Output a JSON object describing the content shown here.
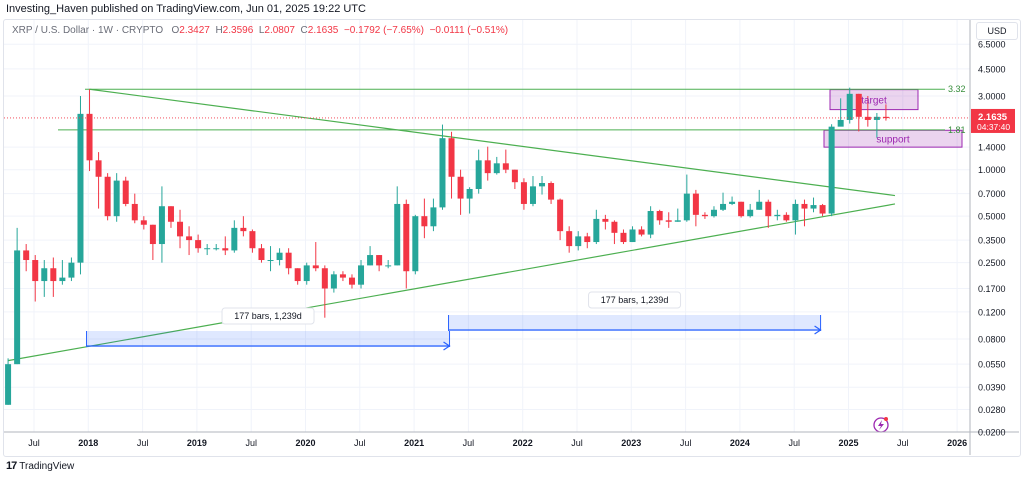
{
  "publish_line": "Investing_Haven published on TradingView.com, Jun 01, 2025 19:22 UTC",
  "legend": {
    "symbol": "XRP / U.S. Dollar · 1W · CRYPTO",
    "open_label": "O",
    "open": "2.3427",
    "high_label": "H",
    "high": "2.3596",
    "low_label": "L",
    "low": "2.0807",
    "close_label": "C",
    "close": "2.1635",
    "change": "−0.1792 (−7.65%)",
    "change2": "−0.0111 (−0.51%)"
  },
  "currency": "USD",
  "branding": "TradingView",
  "colors": {
    "up": "#26a69a",
    "down": "#f23645",
    "lines": "#4caf50",
    "zone": "#9c27b0",
    "range": "#2962ff"
  },
  "chart_data": {
    "type": "candlestick",
    "scale": "log",
    "ylim": [
      0.02,
      6.5
    ],
    "y_ticks": [
      "6.5000",
      "4.5000",
      "3.0000",
      "1.4000",
      "1.0000",
      "0.7000",
      "0.5000",
      "0.3500",
      "0.2500",
      "0.1700",
      "0.1200",
      "0.0800",
      "0.0550",
      "0.0390",
      "0.0280",
      "0.0200"
    ],
    "x_ticks": [
      "Jul",
      "2018",
      "Jul",
      "2019",
      "Jul",
      "2020",
      "Jul",
      "2021",
      "Jul",
      "2022",
      "Jul",
      "2023",
      "Jul",
      "2024",
      "Jul",
      "2025",
      "Jul",
      "2026"
    ],
    "first_open": 0.03,
    "start": "2017-04",
    "candles_hlc": [
      [
        0.06,
        0.03,
        0.055
      ],
      [
        0.42,
        0.055,
        0.3
      ],
      [
        0.33,
        0.22,
        0.26
      ],
      [
        0.28,
        0.14,
        0.19
      ],
      [
        0.26,
        0.15,
        0.23
      ],
      [
        0.27,
        0.15,
        0.19
      ],
      [
        0.26,
        0.18,
        0.2
      ],
      [
        0.27,
        0.19,
        0.25
      ],
      [
        3.0,
        0.21,
        2.3
      ],
      [
        3.32,
        0.98,
        1.15
      ],
      [
        1.3,
        0.56,
        0.9
      ],
      [
        0.95,
        0.47,
        0.5
      ],
      [
        0.95,
        0.46,
        0.85
      ],
      [
        0.9,
        0.58,
        0.6
      ],
      [
        0.7,
        0.45,
        0.47
      ],
      [
        0.5,
        0.41,
        0.44
      ],
      [
        0.44,
        0.26,
        0.33
      ],
      [
        0.78,
        0.25,
        0.58
      ],
      [
        0.58,
        0.42,
        0.46
      ],
      [
        0.55,
        0.31,
        0.37
      ],
      [
        0.43,
        0.28,
        0.35
      ],
      [
        0.38,
        0.29,
        0.31
      ],
      [
        0.33,
        0.28,
        0.31
      ],
      [
        0.33,
        0.3,
        0.31
      ],
      [
        0.37,
        0.28,
        0.3
      ],
      [
        0.47,
        0.29,
        0.42
      ],
      [
        0.5,
        0.37,
        0.4
      ],
      [
        0.41,
        0.29,
        0.31
      ],
      [
        0.33,
        0.25,
        0.26
      ],
      [
        0.32,
        0.22,
        0.26
      ],
      [
        0.31,
        0.24,
        0.29
      ],
      [
        0.31,
        0.21,
        0.23
      ],
      [
        0.23,
        0.18,
        0.19
      ],
      [
        0.25,
        0.18,
        0.24
      ],
      [
        0.34,
        0.22,
        0.23
      ],
      [
        0.24,
        0.11,
        0.17
      ],
      [
        0.22,
        0.16,
        0.21
      ],
      [
        0.22,
        0.19,
        0.2
      ],
      [
        0.21,
        0.17,
        0.18
      ],
      [
        0.26,
        0.17,
        0.24
      ],
      [
        0.32,
        0.24,
        0.28
      ],
      [
        0.28,
        0.22,
        0.24
      ],
      [
        0.26,
        0.23,
        0.24
      ],
      [
        0.78,
        0.24,
        0.6
      ],
      [
        0.64,
        0.17,
        0.22
      ],
      [
        0.51,
        0.21,
        0.5
      ],
      [
        0.65,
        0.36,
        0.43
      ],
      [
        0.65,
        0.4,
        0.57
      ],
      [
        1.96,
        0.55,
        1.6
      ],
      [
        1.76,
        0.65,
        0.9
      ],
      [
        1.0,
        0.51,
        0.65
      ],
      [
        0.77,
        0.52,
        0.75
      ],
      [
        1.35,
        0.7,
        1.15
      ],
      [
        1.41,
        0.85,
        0.95
      ],
      [
        1.21,
        0.93,
        1.1
      ],
      [
        1.35,
        0.95,
        1.0
      ],
      [
        1.0,
        0.75,
        0.83
      ],
      [
        0.88,
        0.55,
        0.6
      ],
      [
        0.91,
        0.58,
        0.78
      ],
      [
        0.91,
        0.69,
        0.82
      ],
      [
        0.84,
        0.6,
        0.64
      ],
      [
        0.65,
        0.35,
        0.4
      ],
      [
        0.43,
        0.29,
        0.32
      ],
      [
        0.4,
        0.3,
        0.37
      ],
      [
        0.39,
        0.31,
        0.34
      ],
      [
        0.55,
        0.33,
        0.48
      ],
      [
        0.51,
        0.41,
        0.46
      ],
      [
        0.47,
        0.33,
        0.39
      ],
      [
        0.41,
        0.33,
        0.34
      ],
      [
        0.43,
        0.34,
        0.41
      ],
      [
        0.43,
        0.37,
        0.38
      ],
      [
        0.58,
        0.36,
        0.54
      ],
      [
        0.55,
        0.44,
        0.47
      ],
      [
        0.53,
        0.42,
        0.46
      ],
      [
        0.56,
        0.46,
        0.47
      ],
      [
        0.93,
        0.46,
        0.7
      ],
      [
        0.74,
        0.43,
        0.51
      ],
      [
        0.53,
        0.48,
        0.5
      ],
      [
        0.58,
        0.49,
        0.55
      ],
      [
        0.71,
        0.54,
        0.6
      ],
      [
        0.67,
        0.59,
        0.62
      ],
      [
        0.62,
        0.49,
        0.5
      ],
      [
        0.6,
        0.49,
        0.55
      ],
      [
        0.74,
        0.55,
        0.62
      ],
      [
        0.64,
        0.42,
        0.5
      ],
      [
        0.55,
        0.47,
        0.51
      ],
      [
        0.53,
        0.46,
        0.47
      ],
      [
        0.64,
        0.38,
        0.6
      ],
      [
        0.64,
        0.43,
        0.56
      ],
      [
        0.66,
        0.53,
        0.59
      ],
      [
        0.6,
        0.5,
        0.52
      ],
      [
        1.97,
        0.5,
        1.9
      ],
      [
        2.9,
        1.95,
        2.1
      ],
      [
        3.4,
        1.99,
        3.1
      ],
      [
        3.1,
        1.77,
        2.2
      ],
      [
        3.0,
        1.9,
        2.1
      ],
      [
        2.33,
        1.61,
        2.2
      ],
      [
        2.65,
        2.08,
        2.16
      ]
    ],
    "last_price": "2.1635",
    "countdown": "04:37:40",
    "levels": [
      {
        "value": 3.32,
        "label": "3.32"
      },
      {
        "value": 1.81,
        "label": "1.81"
      }
    ],
    "zones": [
      {
        "label": "target",
        "low": 2.45,
        "high": 3.3
      },
      {
        "label": "support",
        "low": 1.4,
        "high": 1.8
      }
    ],
    "trendlines": [
      {
        "from": [
          "2018-01",
          3.32
        ],
        "to": [
          "2025-06",
          0.68
        ]
      },
      {
        "from": [
          "2017-04",
          0.058
        ],
        "to": [
          "2025-06",
          0.6
        ]
      }
    ],
    "date_ranges": [
      {
        "label": "177 bars, 1,239d",
        "from": "2018-01",
        "to": "2021-05"
      },
      {
        "label": "177 bars, 1,239d",
        "from": "2021-05",
        "to": "2024-10"
      }
    ]
  }
}
